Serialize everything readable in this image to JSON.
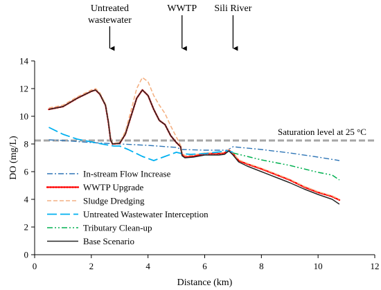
{
  "chart_data": {
    "type": "line",
    "title": "",
    "xlabel": "Distance (km)",
    "ylabel": "DO  (mg/L)",
    "xlim": [
      0,
      12
    ],
    "ylim": [
      0,
      14
    ],
    "xticks": [
      0,
      2,
      4,
      6,
      8,
      10,
      12
    ],
    "yticks": [
      0,
      2,
      4,
      6,
      8,
      10,
      12,
      14
    ],
    "grid": false,
    "legend_position": "bottom-left",
    "saturation": {
      "label": "Saturation level  at 25 °C",
      "value": 8.25,
      "color": "#a6a6a6"
    },
    "annotations": [
      {
        "label": "Untreated\nwastewater",
        "x": 2.65
      },
      {
        "label": "WWTP",
        "x": 5.2
      },
      {
        "label": "Sili River",
        "x": 7.0
      }
    ],
    "series": [
      {
        "name": "In-stream Flow Increase",
        "color": "#2e75b6",
        "dash": "8 3 2 3",
        "width": 1.4,
        "points": [
          [
            0.5,
            8.3
          ],
          [
            1,
            8.25
          ],
          [
            2,
            8.1
          ],
          [
            3,
            8.0
          ],
          [
            4,
            7.9
          ],
          [
            5,
            7.75
          ],
          [
            5.2,
            7.6
          ],
          [
            6,
            7.55
          ],
          [
            6.8,
            7.55
          ],
          [
            7,
            7.8
          ],
          [
            8,
            7.6
          ],
          [
            9,
            7.35
          ],
          [
            10,
            7.05
          ],
          [
            10.75,
            6.8
          ]
        ]
      },
      {
        "name": "WWTP Upgrade",
        "color": "#ff0000",
        "dash": "2 2",
        "width": 2.4,
        "points": [
          [
            0.5,
            10.5
          ],
          [
            1,
            10.7
          ],
          [
            1.5,
            11.3
          ],
          [
            2,
            11.8
          ],
          [
            2.15,
            11.9
          ],
          [
            2.3,
            11.6
          ],
          [
            2.5,
            10.8
          ],
          [
            2.6,
            9.6
          ],
          [
            2.68,
            8.3
          ],
          [
            2.75,
            8.0
          ],
          [
            3.0,
            8.05
          ],
          [
            3.2,
            8.7
          ],
          [
            3.4,
            10.0
          ],
          [
            3.6,
            11.3
          ],
          [
            3.8,
            11.9
          ],
          [
            4.0,
            11.5
          ],
          [
            4.2,
            10.5
          ],
          [
            4.4,
            9.7
          ],
          [
            4.6,
            9.4
          ],
          [
            4.8,
            8.6
          ],
          [
            5.0,
            8.1
          ],
          [
            5.15,
            7.8
          ],
          [
            5.2,
            7.25
          ],
          [
            5.3,
            7.05
          ],
          [
            5.6,
            7.1
          ],
          [
            6.0,
            7.3
          ],
          [
            6.5,
            7.3
          ],
          [
            6.7,
            7.35
          ],
          [
            6.85,
            7.55
          ],
          [
            7.0,
            7.3
          ],
          [
            7.2,
            6.8
          ],
          [
            7.5,
            6.55
          ],
          [
            8.0,
            6.2
          ],
          [
            8.5,
            5.8
          ],
          [
            9.0,
            5.4
          ],
          [
            9.5,
            4.9
          ],
          [
            10.0,
            4.5
          ],
          [
            10.5,
            4.2
          ],
          [
            10.75,
            3.95
          ]
        ]
      },
      {
        "name": "Sludge Dredging",
        "color": "#f4b183",
        "dash": "6 3",
        "width": 1.6,
        "points": [
          [
            0.5,
            10.6
          ],
          [
            1,
            10.8
          ],
          [
            1.5,
            11.4
          ],
          [
            2,
            11.9
          ],
          [
            2.15,
            12.0
          ],
          [
            2.3,
            11.7
          ],
          [
            2.5,
            10.9
          ],
          [
            2.6,
            9.7
          ],
          [
            2.68,
            8.4
          ],
          [
            2.75,
            8.05
          ],
          [
            3.0,
            8.1
          ],
          [
            3.2,
            8.9
          ],
          [
            3.4,
            10.4
          ],
          [
            3.6,
            12.0
          ],
          [
            3.8,
            12.8
          ],
          [
            4.0,
            12.5
          ],
          [
            4.2,
            11.5
          ],
          [
            4.4,
            10.8
          ],
          [
            4.6,
            10.2
          ],
          [
            4.8,
            9.3
          ],
          [
            5.0,
            8.5
          ],
          [
            5.15,
            7.9
          ],
          [
            5.2,
            7.35
          ],
          [
            5.3,
            7.15
          ],
          [
            5.6,
            7.2
          ],
          [
            6.0,
            7.35
          ],
          [
            6.5,
            7.35
          ],
          [
            6.7,
            7.4
          ],
          [
            6.85,
            7.6
          ],
          [
            7.0,
            7.35
          ],
          [
            7.2,
            6.85
          ],
          [
            7.5,
            6.6
          ],
          [
            8.0,
            6.25
          ],
          [
            8.5,
            5.85
          ],
          [
            9.0,
            5.45
          ],
          [
            9.5,
            4.95
          ],
          [
            10.0,
            4.55
          ],
          [
            10.5,
            4.25
          ],
          [
            10.75,
            4.0
          ]
        ]
      },
      {
        "name": "Untreated Wastewater Interception",
        "color": "#00b0f0",
        "dash": "14 5",
        "width": 1.8,
        "points": [
          [
            0.5,
            9.2
          ],
          [
            1,
            8.7
          ],
          [
            1.5,
            8.35
          ],
          [
            2,
            8.15
          ],
          [
            2.5,
            7.95
          ],
          [
            2.8,
            7.85
          ],
          [
            3.0,
            7.85
          ],
          [
            3.3,
            7.6
          ],
          [
            3.8,
            7.1
          ],
          [
            4.2,
            6.8
          ],
          [
            4.6,
            7.1
          ],
          [
            5.0,
            7.4
          ],
          [
            5.2,
            7.3
          ],
          [
            5.5,
            7.25
          ],
          [
            6.0,
            7.3
          ],
          [
            6.8,
            7.5
          ],
          [
            7.0,
            7.4
          ]
        ]
      },
      {
        "name": "Tributary Clean-up",
        "color": "#00b050",
        "dash": "8 3 2 3 2 3",
        "width": 1.5,
        "points": [
          [
            7.0,
            7.35
          ],
          [
            7.5,
            7.1
          ],
          [
            8.0,
            6.85
          ],
          [
            8.5,
            6.65
          ],
          [
            9.0,
            6.45
          ],
          [
            9.5,
            6.2
          ],
          [
            10.0,
            5.95
          ],
          [
            10.5,
            5.75
          ],
          [
            10.75,
            5.4
          ]
        ]
      },
      {
        "name": "Base Scenario",
        "color": "#262626",
        "dash": "",
        "width": 1.5,
        "points": [
          [
            0.5,
            10.5
          ],
          [
            1,
            10.7
          ],
          [
            1.5,
            11.3
          ],
          [
            2,
            11.8
          ],
          [
            2.15,
            11.9
          ],
          [
            2.3,
            11.6
          ],
          [
            2.5,
            10.8
          ],
          [
            2.6,
            9.6
          ],
          [
            2.68,
            8.3
          ],
          [
            2.75,
            8.0
          ],
          [
            3.0,
            8.05
          ],
          [
            3.2,
            8.7
          ],
          [
            3.4,
            10.0
          ],
          [
            3.6,
            11.3
          ],
          [
            3.8,
            11.9
          ],
          [
            4.0,
            11.5
          ],
          [
            4.2,
            10.5
          ],
          [
            4.4,
            9.7
          ],
          [
            4.6,
            9.4
          ],
          [
            4.8,
            8.6
          ],
          [
            5.0,
            8.1
          ],
          [
            5.15,
            7.8
          ],
          [
            5.2,
            7.15
          ],
          [
            5.3,
            7.0
          ],
          [
            5.6,
            7.05
          ],
          [
            6.0,
            7.2
          ],
          [
            6.5,
            7.2
          ],
          [
            6.7,
            7.25
          ],
          [
            6.85,
            7.5
          ],
          [
            7.0,
            7.2
          ],
          [
            7.2,
            6.7
          ],
          [
            7.5,
            6.4
          ],
          [
            8.0,
            6.0
          ],
          [
            8.5,
            5.6
          ],
          [
            9.0,
            5.2
          ],
          [
            9.5,
            4.75
          ],
          [
            10.0,
            4.35
          ],
          [
            10.5,
            4.0
          ],
          [
            10.75,
            3.65
          ]
        ]
      }
    ]
  }
}
